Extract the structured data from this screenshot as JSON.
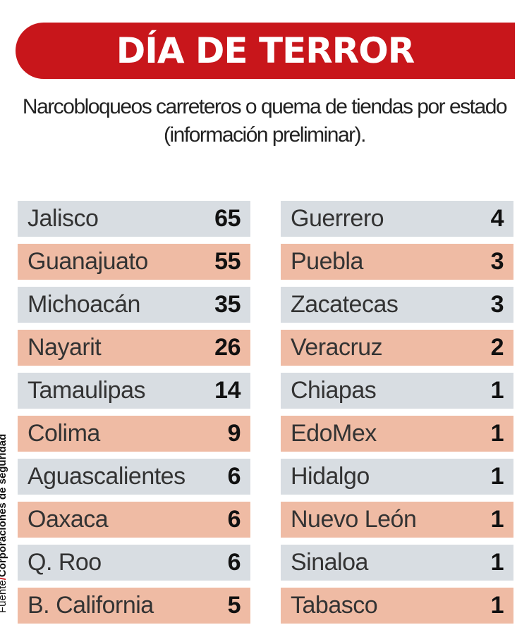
{
  "title": "DÍA DE TERROR",
  "subtitle": "Narcobloqueos carreteros o quema de tiendas por estado (información preliminar).",
  "source": {
    "label": "Fuente",
    "separator": "/",
    "text": "Corporaciones de seguridad"
  },
  "colors": {
    "accent": "#c8161b",
    "row_a": "#d8dde2",
    "row_b": "#efbba4"
  },
  "chart_data": {
    "type": "table",
    "columns": [
      [
        {
          "state": "Jalisco",
          "value": 65
        },
        {
          "state": "Guanajuato",
          "value": 55
        },
        {
          "state": "Michoacán",
          "value": 35
        },
        {
          "state": "Nayarit",
          "value": 26
        },
        {
          "state": "Tamaulipas",
          "value": 14
        },
        {
          "state": "Colima",
          "value": 9
        },
        {
          "state": "Aguascalientes",
          "value": 6
        },
        {
          "state": "Oaxaca",
          "value": 6
        },
        {
          "state": "Q. Roo",
          "value": 6
        },
        {
          "state": "B. California",
          "value": 5
        }
      ],
      [
        {
          "state": "Guerrero",
          "value": 4
        },
        {
          "state": "Puebla",
          "value": 3
        },
        {
          "state": "Zacatecas",
          "value": 3
        },
        {
          "state": "Veracruz",
          "value": 2
        },
        {
          "state": "Chiapas",
          "value": 1
        },
        {
          "state": "EdoMex",
          "value": 1
        },
        {
          "state": "Hidalgo",
          "value": 1
        },
        {
          "state": "Nuevo León",
          "value": 1
        },
        {
          "state": "Sinaloa",
          "value": 1
        },
        {
          "state": "Tabasco",
          "value": 1
        }
      ]
    ]
  }
}
